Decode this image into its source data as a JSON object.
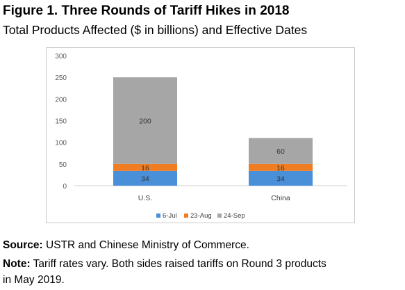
{
  "header": {
    "title": "Figure 1. Three Rounds of Tariff Hikes in 2018",
    "subtitle": "Total Products Affected ($ in billions) and Effective Dates"
  },
  "footer": {
    "source_label": "Source:",
    "source_text": "USTR and Chinese Ministry of Commerce.",
    "note_label": "Note:",
    "note_text_line1": "Tariff rates vary. Both sides raised tariffs on Round 3 products",
    "note_text_line2": "in May 2019."
  },
  "chart_data": {
    "type": "bar",
    "stacked": true,
    "categories": [
      "U.S.",
      "China"
    ],
    "series": [
      {
        "name": "6-Jul",
        "values": [
          34,
          34
        ],
        "color": "#4a90d9"
      },
      {
        "name": "23-Aug",
        "values": [
          16,
          16
        ],
        "color": "#f07d22"
      },
      {
        "name": "24-Sep",
        "values": [
          200,
          60
        ],
        "color": "#a6a6a6"
      }
    ],
    "data_labels": [
      [
        "34",
        "34"
      ],
      [
        "16",
        "16"
      ],
      [
        "200",
        "60"
      ]
    ],
    "ylim": [
      0,
      300
    ],
    "yticks": [
      0,
      50,
      100,
      150,
      200,
      250,
      300
    ],
    "grid": false,
    "legend_position": "bottom"
  }
}
